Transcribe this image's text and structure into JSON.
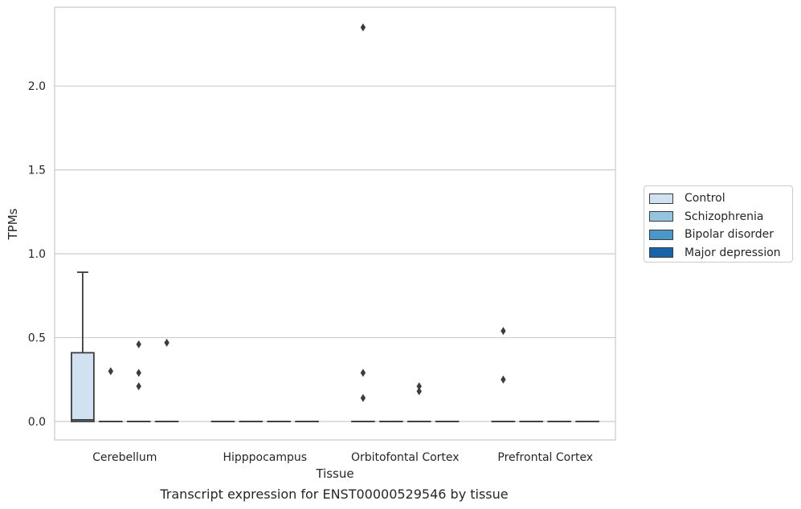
{
  "chart_data": {
    "type": "box",
    "title": "",
    "caption": "Transcript expression for ENST00000529546 by tissue",
    "xlabel": "Tissue",
    "ylabel": "TPMs",
    "ylim": [
      -0.11,
      2.47
    ],
    "yticks": [
      0.0,
      0.5,
      1.0,
      1.5,
      2.0
    ],
    "ytick_labels": [
      "0.0",
      "0.5",
      "1.0",
      "1.5",
      "2.0"
    ],
    "grid": "horizontal",
    "legend_position": "right",
    "categories": [
      "Cerebellum",
      "Hipppocampus",
      "Orbitofontal Cortex",
      "Prefrontal Cortex"
    ],
    "series": [
      {
        "name": "Control",
        "color": "#d0e1f2",
        "boxes": [
          {
            "q1": 0.0,
            "median": 0.01,
            "q3": 0.41,
            "whisker_low": 0.0,
            "whisker_high": 0.89,
            "outliers": []
          },
          {
            "q1": 0.0,
            "median": 0.0,
            "q3": 0.0,
            "whisker_low": 0.0,
            "whisker_high": 0.0,
            "outliers": []
          },
          {
            "q1": 0.0,
            "median": 0.0,
            "q3": 0.0,
            "whisker_low": 0.0,
            "whisker_high": 0.0,
            "outliers": [
              0.14,
              0.29,
              2.35
            ]
          },
          {
            "q1": 0.0,
            "median": 0.0,
            "q3": 0.0,
            "whisker_low": 0.0,
            "whisker_high": 0.0,
            "outliers": [
              0.25,
              0.54
            ]
          }
        ]
      },
      {
        "name": "Schizophrenia",
        "color": "#94c4df",
        "boxes": [
          {
            "q1": 0.0,
            "median": 0.0,
            "q3": 0.0,
            "whisker_low": 0.0,
            "whisker_high": 0.0,
            "outliers": [
              0.3
            ]
          },
          {
            "q1": 0.0,
            "median": 0.0,
            "q3": 0.0,
            "whisker_low": 0.0,
            "whisker_high": 0.0,
            "outliers": []
          },
          {
            "q1": 0.0,
            "median": 0.0,
            "q3": 0.0,
            "whisker_low": 0.0,
            "whisker_high": 0.0,
            "outliers": []
          },
          {
            "q1": 0.0,
            "median": 0.0,
            "q3": 0.0,
            "whisker_low": 0.0,
            "whisker_high": 0.0,
            "outliers": []
          }
        ]
      },
      {
        "name": "Bipolar disorder",
        "color": "#4a98c9",
        "boxes": [
          {
            "q1": 0.0,
            "median": 0.0,
            "q3": 0.0,
            "whisker_low": 0.0,
            "whisker_high": 0.0,
            "outliers": [
              0.21,
              0.29,
              0.46
            ]
          },
          {
            "q1": 0.0,
            "median": 0.0,
            "q3": 0.0,
            "whisker_low": 0.0,
            "whisker_high": 0.0,
            "outliers": []
          },
          {
            "q1": 0.0,
            "median": 0.0,
            "q3": 0.0,
            "whisker_low": 0.0,
            "whisker_high": 0.0,
            "outliers": [
              0.18,
              0.21
            ]
          },
          {
            "q1": 0.0,
            "median": 0.0,
            "q3": 0.0,
            "whisker_low": 0.0,
            "whisker_high": 0.0,
            "outliers": []
          }
        ]
      },
      {
        "name": "Major depression",
        "color": "#1764ab",
        "boxes": [
          {
            "q1": 0.0,
            "median": 0.0,
            "q3": 0.0,
            "whisker_low": 0.0,
            "whisker_high": 0.0,
            "outliers": [
              0.47
            ]
          },
          {
            "q1": 0.0,
            "median": 0.0,
            "q3": 0.0,
            "whisker_low": 0.0,
            "whisker_high": 0.0,
            "outliers": []
          },
          {
            "q1": 0.0,
            "median": 0.0,
            "q3": 0.0,
            "whisker_low": 0.0,
            "whisker_high": 0.0,
            "outliers": []
          },
          {
            "q1": 0.0,
            "median": 0.0,
            "q3": 0.0,
            "whisker_low": 0.0,
            "whisker_high": 0.0,
            "outliers": []
          }
        ]
      }
    ]
  }
}
